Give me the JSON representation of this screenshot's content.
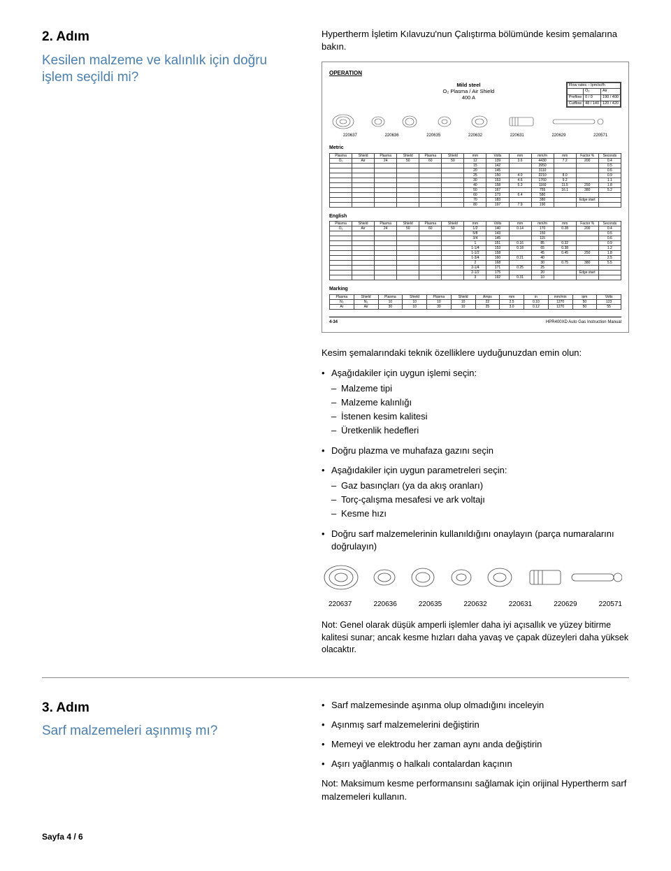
{
  "step2": {
    "num": "2. Adım",
    "title": "Kesilen malzeme ve kalınlık için doğru işlem seçildi mi?",
    "intro": "Hypertherm İşletim Kılavuzu'nun Çalıştırma bölümünde kesim şemalarına bakın."
  },
  "operation_panel": {
    "title": "OPERATION",
    "mild": {
      "l1": "Mild steel",
      "l2": "O₂ Plasma / Air Shield",
      "l3": "400 A"
    },
    "flow": {
      "head": [
        "Flow rates – lpm/scfh"
      ],
      "rows": [
        [
          "",
          "O₂",
          "Air"
        ],
        [
          "Preflow",
          "0 / 0",
          "190 / 400"
        ],
        [
          "Cutflow",
          "48 / 140",
          "120 / 420"
        ]
      ]
    },
    "parts_small": [
      "220637",
      "220636",
      "220635",
      "220632",
      "220631",
      "220629",
      "220571"
    ],
    "metric_label": "Metric",
    "english_label": "English",
    "marking_label": "Marking",
    "metric_head": [
      "Select Gases",
      "Set Preflow",
      "Set Cutflow",
      "Material Thickness",
      "Arc Voltage",
      "Torch-to-Work Distance",
      "Cutting Speed",
      "Initial Pierce Height",
      "Pierce Delay Time"
    ],
    "metric_sub": [
      "Plasma",
      "Shield",
      "Plasma",
      "Shield",
      "Plasma",
      "Shield",
      "mm",
      "Volts",
      "mm",
      "mm/m",
      "mm",
      "Factor %",
      "Seconds"
    ],
    "metric_rows": [
      [
        "O₂",
        "Air",
        "24",
        "50",
        "60",
        "50",
        "12",
        "139",
        "3.6",
        "4430",
        "7.2",
        "200",
        "0.4"
      ],
      [
        "",
        "",
        "",
        "",
        "",
        "",
        "15",
        "142",
        "",
        "3950",
        "",
        "",
        "0.5"
      ],
      [
        "",
        "",
        "",
        "",
        "",
        "",
        "20",
        "145",
        "",
        "3110",
        "",
        "",
        "0.6"
      ],
      [
        "",
        "",
        "",
        "",
        "",
        "",
        "25",
        "150",
        "4.0",
        "2210",
        "8.0",
        "",
        "0.9"
      ],
      [
        "",
        "",
        "",
        "",
        "",
        "",
        "30",
        "153",
        "4.6",
        "1760",
        "9.2",
        "",
        "1.1"
      ],
      [
        "",
        "",
        "",
        "",
        "",
        "",
        "40",
        "158",
        "5.3",
        "1160",
        "11.5",
        "250",
        "1.8"
      ],
      [
        "",
        "",
        "",
        "",
        "",
        "",
        "50",
        "167",
        "",
        "755",
        "16.1",
        "380",
        "5.2"
      ],
      [
        "",
        "",
        "",
        "",
        "",
        "",
        "60",
        "173",
        "6.4",
        "580",
        "",
        "",
        ""
      ],
      [
        "",
        "",
        "",
        "",
        "",
        "",
        "70",
        "183",
        "",
        "380",
        "",
        "Edge start",
        ""
      ],
      [
        "",
        "",
        "",
        "",
        "",
        "",
        "80",
        "197",
        "7.9",
        "190",
        "",
        "",
        ""
      ]
    ],
    "english_rows": [
      [
        "O₂",
        "Air",
        "24",
        "50",
        "60",
        "50",
        "1/2",
        "140",
        "0.14",
        "170",
        "0.28",
        "200",
        "0.4"
      ],
      [
        "",
        "",
        "",
        "",
        "",
        "",
        "5/8",
        "143",
        "",
        "150",
        "",
        "",
        "0.5"
      ],
      [
        "",
        "",
        "",
        "",
        "",
        "",
        "3/4",
        "145",
        "",
        "115",
        "",
        "",
        "0.6"
      ],
      [
        "",
        "",
        "",
        "",
        "",
        "",
        "1",
        "151",
        "0.16",
        "85",
        "0.32",
        "",
        "0.9"
      ],
      [
        "",
        "",
        "",
        "",
        "",
        "",
        "1-1/4",
        "153",
        "0.18",
        "65",
        "0.38",
        "",
        "1.2"
      ],
      [
        "",
        "",
        "",
        "",
        "",
        "",
        "1-1/2",
        "158",
        "",
        "45",
        "0.45",
        "250",
        "1.8"
      ],
      [
        "",
        "",
        "",
        "",
        "",
        "",
        "1-3/4",
        "160",
        "0.21",
        "40",
        "",
        "",
        "2.5"
      ],
      [
        "",
        "",
        "",
        "",
        "",
        "",
        "2",
        "168",
        "",
        "30",
        "0.75",
        "380",
        "5.5"
      ],
      [
        "",
        "",
        "",
        "",
        "",
        "",
        "2-1/4",
        "171",
        "0.25",
        "25",
        "",
        "",
        ""
      ],
      [
        "",
        "",
        "",
        "",
        "",
        "",
        "2-1/2",
        "175",
        "",
        "20",
        "",
        "Edge start",
        ""
      ],
      [
        "",
        "",
        "",
        "",
        "",
        "",
        "3",
        "192",
        "0.31",
        "10",
        "",
        "",
        ""
      ]
    ],
    "marking_head": [
      "Select Gases",
      "Set Preflow",
      "Set Cutflow",
      "Amperage",
      "Torch-to-Work Distance",
      "Marking Speed",
      "Arc Voltage"
    ],
    "marking_sub": [
      "Plasma",
      "Shield",
      "Plasma",
      "Shield",
      "Plasma",
      "Shield",
      "Amps",
      "mm",
      "in",
      "mm/min",
      "ipm",
      "Volts"
    ],
    "marking_rows": [
      [
        "N₂",
        "N₂",
        "10",
        "10",
        "10",
        "10",
        "22",
        "2.5",
        "0.10",
        "1270",
        "50",
        "123"
      ],
      [
        "Ar",
        "Air",
        "30",
        "10",
        "30",
        "10",
        "25",
        "3.0",
        "0.12",
        "1270",
        "50",
        "55"
      ]
    ],
    "footer_l": "4-34",
    "footer_r": "HPR400XD Auto Gas Instruction Manual"
  },
  "checklist": {
    "lead": "Kesim şemalarındaki teknik özelliklere uyduğunuzdan emin olun:",
    "b1": "Aşağıdakiler için uygun işlemi seçin:",
    "b1s": [
      "Malzeme tipi",
      "Malzeme kalınlığı",
      "İstenen kesim kalitesi",
      "Üretkenlik hedefleri"
    ],
    "b2": "Doğru plazma ve muhafaza gazını seçin",
    "b3": "Aşağıdakiler için uygun parametreleri seçin:",
    "b3s": [
      "Gaz basınçları (ya da akış oranları)",
      "Torç-çalışma mesafesi ve ark voltajı",
      "Kesme hızı"
    ],
    "b4": "Doğru sarf malzemelerinin kullanıldığını onaylayın (parça numaralarını doğrulayın)"
  },
  "big_parts": [
    "220637",
    "220636",
    "220635",
    "220632",
    "220631",
    "220629",
    "220571"
  ],
  "big_note": "Not: Genel olarak düşük amperli işlemler daha iyi açısallık ve yüzey bitirme kalitesi sunar; ancak kesme hızları daha yavaş ve çapak düzeyleri daha yüksek olacaktır.",
  "step3": {
    "num": "3. Adım",
    "title": "Sarf malzemeleri aşınmış mı?",
    "bullets": [
      "Sarf malzemesinde aşınma olup olmadığını inceleyin",
      "Aşınmış sarf malzemelerini değiştirin",
      "Memeyi ve elektrodu her zaman aynı anda değiştirin",
      "Aşırı yağlanmış o halkalı contalardan kaçının"
    ],
    "note": "Not: Maksimum kesme performansını sağlamak için orijinal Hypertherm sarf malzemeleri kullanın."
  },
  "page_footer": "Sayfa 4 / 6",
  "colors": {
    "accent": "#4a7fb0",
    "text": "#000000",
    "border": "#444444",
    "rule": "#888888"
  }
}
